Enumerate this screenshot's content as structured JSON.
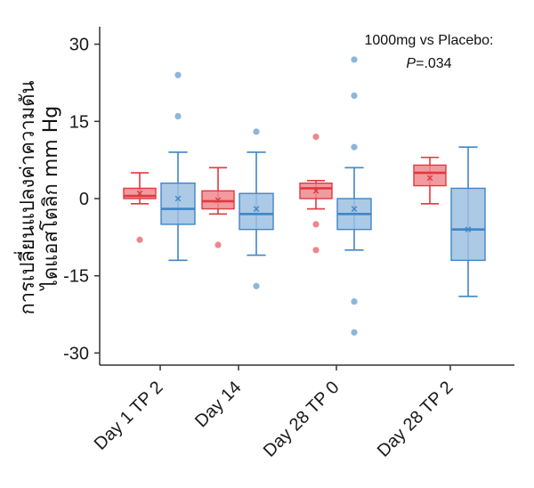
{
  "chart_data": {
    "type": "box",
    "title": "",
    "xlabel": "",
    "ylabel_lines": [
      "การเปลี่ยนแปลงค่าความดัน",
      "ไดแอสโตลิก mm Hg"
    ],
    "ylim": [
      -33,
      33
    ],
    "yticks": [
      30,
      15,
      0,
      -15,
      -30
    ],
    "ytick_labels": [
      "30",
      "15",
      "0",
      "-15",
      "-30"
    ],
    "categories": [
      "Day 1 TP 2",
      "Day 14",
      "Day 28 TP 0",
      "Day 28 TP 2"
    ],
    "annotation_line1": "1000mg vs Placebo:",
    "annotation_line2_italic": "P",
    "annotation_line2_rest": "=.034",
    "grid": false,
    "colors": {
      "red_fill": "#ef8a8f",
      "red_line": "#e0393f",
      "blue_fill": "#9dbfe0",
      "blue_line": "#3f86c8",
      "axis": "#333333"
    },
    "series": [
      {
        "color": "red",
        "boxes": [
          {
            "whisker_low": -1,
            "q1": 0,
            "median": 0.5,
            "q3": 2,
            "whisker_high": 5,
            "mean": 1,
            "outliers": [
              -8
            ]
          },
          {
            "whisker_low": -3,
            "q1": -2,
            "median": -0.5,
            "q3": 1.5,
            "whisker_high": 6,
            "mean": -0.3,
            "outliers": [
              -9
            ]
          },
          {
            "whisker_low": -2,
            "q1": 0,
            "median": 2,
            "q3": 3,
            "whisker_high": 3.5,
            "mean": 1.5,
            "outliers": [
              12,
              -5,
              -10
            ]
          },
          {
            "whisker_low": -1,
            "q1": 2.5,
            "median": 5,
            "q3": 6.5,
            "whisker_high": 8,
            "mean": 4,
            "outliers": []
          }
        ]
      },
      {
        "color": "blue",
        "boxes": [
          {
            "whisker_low": -12,
            "q1": -5,
            "median": -2,
            "q3": 3,
            "whisker_high": 9,
            "mean": 0,
            "outliers": [
              24,
              16
            ]
          },
          {
            "whisker_low": -11,
            "q1": -6,
            "median": -3,
            "q3": 1,
            "whisker_high": 9,
            "mean": -2,
            "outliers": [
              13,
              -17
            ]
          },
          {
            "whisker_low": -10,
            "q1": -6,
            "median": -3,
            "q3": 0,
            "whisker_high": 6,
            "mean": -2,
            "outliers": [
              27,
              20,
              10,
              -20,
              -26
            ]
          },
          {
            "whisker_low": -19,
            "q1": -12,
            "median": -6,
            "q3": 2,
            "whisker_high": 10,
            "mean": -6,
            "outliers": []
          }
        ]
      }
    ]
  }
}
